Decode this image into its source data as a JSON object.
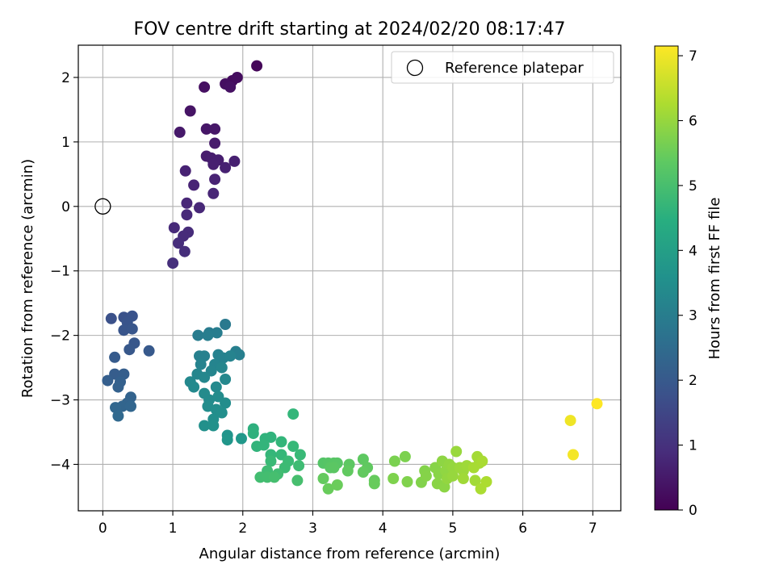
{
  "chart_data": {
    "type": "scatter",
    "title": "FOV centre drift starting at 2024/02/20 08:17:47",
    "xlabel": "Angular distance from reference (arcmin)",
    "ylabel": "Rotation from reference (arcmin)",
    "xlim": [
      -0.35,
      7.4
    ],
    "ylim": [
      -4.72,
      2.5
    ],
    "xticks": [
      "0",
      "1",
      "2",
      "3",
      "4",
      "5",
      "6",
      "7"
    ],
    "yticks": [
      "−4",
      "−3",
      "−2",
      "−1",
      "0",
      "1",
      "2"
    ],
    "grid": true,
    "legend": {
      "position": "top-right",
      "entries": [
        {
          "label": "Reference platepar",
          "marker": "open-circle"
        }
      ]
    },
    "reference_point": {
      "x": 0,
      "y": 0
    },
    "colorbar": {
      "label": "Hours from first FF file",
      "colormap": "viridis",
      "range": [
        0,
        7.15
      ],
      "ticks": [
        "0",
        "1",
        "2",
        "3",
        "4",
        "5",
        "6",
        "7"
      ]
    },
    "points": [
      {
        "x": 1.85,
        "y": 1.95,
        "t": 0.2
      },
      {
        "x": 2.2,
        "y": 2.18,
        "t": 0.12
      },
      {
        "x": 1.92,
        "y": 2.0,
        "t": 0.25
      },
      {
        "x": 1.75,
        "y": 1.9,
        "t": 0.28
      },
      {
        "x": 1.45,
        "y": 1.85,
        "t": 0.3
      },
      {
        "x": 1.82,
        "y": 1.85,
        "t": 0.33
      },
      {
        "x": 1.25,
        "y": 1.48,
        "t": 0.38
      },
      {
        "x": 1.48,
        "y": 1.2,
        "t": 0.42
      },
      {
        "x": 1.6,
        "y": 1.2,
        "t": 0.45
      },
      {
        "x": 1.1,
        "y": 1.15,
        "t": 0.48
      },
      {
        "x": 1.6,
        "y": 0.98,
        "t": 0.52
      },
      {
        "x": 1.48,
        "y": 0.78,
        "t": 0.55
      },
      {
        "x": 1.55,
        "y": 0.75,
        "t": 0.58
      },
      {
        "x": 1.65,
        "y": 0.72,
        "t": 0.6
      },
      {
        "x": 1.58,
        "y": 0.65,
        "t": 0.62
      },
      {
        "x": 1.88,
        "y": 0.7,
        "t": 0.64
      },
      {
        "x": 1.75,
        "y": 0.6,
        "t": 0.66
      },
      {
        "x": 1.18,
        "y": 0.55,
        "t": 0.68
      },
      {
        "x": 1.6,
        "y": 0.42,
        "t": 0.7
      },
      {
        "x": 1.3,
        "y": 0.33,
        "t": 0.72
      },
      {
        "x": 1.58,
        "y": 0.2,
        "t": 0.75
      },
      {
        "x": 1.2,
        "y": 0.05,
        "t": 0.78
      },
      {
        "x": 1.38,
        "y": -0.02,
        "t": 0.8
      },
      {
        "x": 1.2,
        "y": -0.13,
        "t": 0.82
      },
      {
        "x": 1.02,
        "y": -0.33,
        "t": 0.85
      },
      {
        "x": 1.22,
        "y": -0.4,
        "t": 0.88
      },
      {
        "x": 1.15,
        "y": -0.46,
        "t": 0.9
      },
      {
        "x": 1.08,
        "y": -0.57,
        "t": 0.92
      },
      {
        "x": 1.17,
        "y": -0.7,
        "t": 0.95
      },
      {
        "x": 1.0,
        "y": -0.88,
        "t": 0.98
      },
      {
        "x": 0.12,
        "y": -1.74,
        "t": 1.8
      },
      {
        "x": 0.3,
        "y": -1.72,
        "t": 1.82
      },
      {
        "x": 0.42,
        "y": -1.7,
        "t": 1.85
      },
      {
        "x": 0.35,
        "y": -1.8,
        "t": 1.87
      },
      {
        "x": 0.3,
        "y": -1.92,
        "t": 1.9
      },
      {
        "x": 0.42,
        "y": -1.9,
        "t": 1.92
      },
      {
        "x": 0.45,
        "y": -2.12,
        "t": 1.95
      },
      {
        "x": 0.38,
        "y": -2.22,
        "t": 1.97
      },
      {
        "x": 0.66,
        "y": -2.24,
        "t": 2.0
      },
      {
        "x": 0.17,
        "y": -2.34,
        "t": 2.05
      },
      {
        "x": 0.17,
        "y": -2.6,
        "t": 2.1
      },
      {
        "x": 0.3,
        "y": -2.6,
        "t": 2.12
      },
      {
        "x": 0.07,
        "y": -2.7,
        "t": 2.15
      },
      {
        "x": 0.25,
        "y": -2.72,
        "t": 2.18
      },
      {
        "x": 0.22,
        "y": -2.8,
        "t": 2.2
      },
      {
        "x": 0.4,
        "y": -2.96,
        "t": 2.25
      },
      {
        "x": 0.35,
        "y": -3.05,
        "t": 2.28
      },
      {
        "x": 0.28,
        "y": -3.1,
        "t": 2.3
      },
      {
        "x": 0.4,
        "y": -3.1,
        "t": 2.32
      },
      {
        "x": 0.18,
        "y": -3.12,
        "t": 2.35
      },
      {
        "x": 0.22,
        "y": -3.25,
        "t": 2.4
      },
      {
        "x": 1.75,
        "y": -1.83,
        "t": 2.9
      },
      {
        "x": 1.52,
        "y": -1.96,
        "t": 2.95
      },
      {
        "x": 1.36,
        "y": -2.0,
        "t": 3.0
      },
      {
        "x": 1.63,
        "y": -1.96,
        "t": 3.02
      },
      {
        "x": 1.5,
        "y": -2.0,
        "t": 3.05
      },
      {
        "x": 1.9,
        "y": -2.25,
        "t": 3.08
      },
      {
        "x": 1.95,
        "y": -2.3,
        "t": 3.1
      },
      {
        "x": 1.38,
        "y": -2.32,
        "t": 3.12
      },
      {
        "x": 1.45,
        "y": -2.32,
        "t": 3.14
      },
      {
        "x": 1.65,
        "y": -2.3,
        "t": 3.16
      },
      {
        "x": 1.72,
        "y": -2.35,
        "t": 3.18
      },
      {
        "x": 1.82,
        "y": -2.32,
        "t": 3.2
      },
      {
        "x": 1.4,
        "y": -2.45,
        "t": 3.22
      },
      {
        "x": 1.6,
        "y": -2.45,
        "t": 3.24
      },
      {
        "x": 1.55,
        "y": -2.55,
        "t": 3.26
      },
      {
        "x": 1.7,
        "y": -2.5,
        "t": 3.28
      },
      {
        "x": 1.35,
        "y": -2.6,
        "t": 3.3
      },
      {
        "x": 1.45,
        "y": -2.65,
        "t": 3.32
      },
      {
        "x": 1.75,
        "y": -2.68,
        "t": 3.34
      },
      {
        "x": 1.25,
        "y": -2.72,
        "t": 3.36
      },
      {
        "x": 1.3,
        "y": -2.8,
        "t": 3.38
      },
      {
        "x": 1.62,
        "y": -2.8,
        "t": 3.4
      },
      {
        "x": 1.45,
        "y": -2.9,
        "t": 3.42
      },
      {
        "x": 1.52,
        "y": -3.0,
        "t": 3.44
      },
      {
        "x": 1.65,
        "y": -2.95,
        "t": 3.46
      },
      {
        "x": 1.75,
        "y": -3.05,
        "t": 3.48
      },
      {
        "x": 1.5,
        "y": -3.1,
        "t": 3.5
      },
      {
        "x": 1.62,
        "y": -3.15,
        "t": 3.52
      },
      {
        "x": 1.58,
        "y": -3.3,
        "t": 3.54
      },
      {
        "x": 1.7,
        "y": -3.2,
        "t": 3.56
      },
      {
        "x": 1.45,
        "y": -3.4,
        "t": 3.58
      },
      {
        "x": 1.58,
        "y": -3.4,
        "t": 3.6
      },
      {
        "x": 1.78,
        "y": -3.55,
        "t": 3.7
      },
      {
        "x": 1.78,
        "y": -3.62,
        "t": 3.75
      },
      {
        "x": 1.98,
        "y": -3.6,
        "t": 3.8
      },
      {
        "x": 2.15,
        "y": -3.45,
        "t": 4.5
      },
      {
        "x": 2.15,
        "y": -3.52,
        "t": 4.55
      },
      {
        "x": 2.32,
        "y": -3.6,
        "t": 4.6
      },
      {
        "x": 2.4,
        "y": -3.58,
        "t": 4.62
      },
      {
        "x": 2.2,
        "y": -3.72,
        "t": 4.65
      },
      {
        "x": 2.3,
        "y": -3.7,
        "t": 4.68
      },
      {
        "x": 2.55,
        "y": -3.65,
        "t": 4.7
      },
      {
        "x": 2.72,
        "y": -3.22,
        "t": 4.72
      },
      {
        "x": 2.4,
        "y": -3.85,
        "t": 4.75
      },
      {
        "x": 2.55,
        "y": -3.85,
        "t": 4.78
      },
      {
        "x": 2.72,
        "y": -3.72,
        "t": 4.8
      },
      {
        "x": 2.82,
        "y": -3.85,
        "t": 4.82
      },
      {
        "x": 2.4,
        "y": -3.95,
        "t": 4.84
      },
      {
        "x": 2.65,
        "y": -3.95,
        "t": 4.86
      },
      {
        "x": 2.6,
        "y": -4.05,
        "t": 4.88
      },
      {
        "x": 2.8,
        "y": -4.02,
        "t": 4.9
      },
      {
        "x": 2.35,
        "y": -4.1,
        "t": 4.92
      },
      {
        "x": 2.5,
        "y": -4.15,
        "t": 4.94
      },
      {
        "x": 2.25,
        "y": -4.2,
        "t": 4.96
      },
      {
        "x": 2.35,
        "y": -4.2,
        "t": 4.98
      },
      {
        "x": 2.45,
        "y": -4.2,
        "t": 5.0
      },
      {
        "x": 2.78,
        "y": -4.25,
        "t": 5.02
      },
      {
        "x": 3.15,
        "y": -3.98,
        "t": 5.2
      },
      {
        "x": 3.22,
        "y": -3.98,
        "t": 5.22
      },
      {
        "x": 3.3,
        "y": -3.98,
        "t": 5.24
      },
      {
        "x": 3.35,
        "y": -3.98,
        "t": 5.26
      },
      {
        "x": 3.25,
        "y": -4.05,
        "t": 5.28
      },
      {
        "x": 3.3,
        "y": -4.05,
        "t": 5.3
      },
      {
        "x": 3.52,
        "y": -4.0,
        "t": 5.32
      },
      {
        "x": 3.72,
        "y": -3.92,
        "t": 5.34
      },
      {
        "x": 3.78,
        "y": -4.05,
        "t": 5.36
      },
      {
        "x": 3.5,
        "y": -4.1,
        "t": 5.38
      },
      {
        "x": 3.72,
        "y": -4.12,
        "t": 5.4
      },
      {
        "x": 3.15,
        "y": -4.22,
        "t": 5.42
      },
      {
        "x": 3.88,
        "y": -4.25,
        "t": 5.44
      },
      {
        "x": 3.88,
        "y": -4.3,
        "t": 5.46
      },
      {
        "x": 3.22,
        "y": -4.38,
        "t": 5.48
      },
      {
        "x": 3.35,
        "y": -4.32,
        "t": 5.5
      },
      {
        "x": 4.17,
        "y": -3.95,
        "t": 5.7
      },
      {
        "x": 4.32,
        "y": -3.88,
        "t": 5.72
      },
      {
        "x": 4.15,
        "y": -4.22,
        "t": 5.74
      },
      {
        "x": 4.35,
        "y": -4.27,
        "t": 5.76
      },
      {
        "x": 4.55,
        "y": -4.28,
        "t": 5.78
      },
      {
        "x": 4.6,
        "y": -4.1,
        "t": 5.8
      },
      {
        "x": 4.62,
        "y": -4.18,
        "t": 5.82
      },
      {
        "x": 4.75,
        "y": -4.05,
        "t": 5.84
      },
      {
        "x": 4.8,
        "y": -4.15,
        "t": 5.86
      },
      {
        "x": 4.78,
        "y": -4.3,
        "t": 5.88
      },
      {
        "x": 4.88,
        "y": -4.35,
        "t": 5.9
      },
      {
        "x": 4.85,
        "y": -3.95,
        "t": 5.92
      },
      {
        "x": 4.9,
        "y": -4.1,
        "t": 5.94
      },
      {
        "x": 4.95,
        "y": -4.0,
        "t": 5.96
      },
      {
        "x": 4.92,
        "y": -4.22,
        "t": 5.98
      },
      {
        "x": 5.0,
        "y": -4.05,
        "t": 6.0
      },
      {
        "x": 5.0,
        "y": -4.18,
        "t": 6.02
      },
      {
        "x": 5.05,
        "y": -3.8,
        "t": 6.04
      },
      {
        "x": 5.1,
        "y": -4.05,
        "t": 6.06
      },
      {
        "x": 5.15,
        "y": -4.1,
        "t": 6.08
      },
      {
        "x": 5.2,
        "y": -4.02,
        "t": 6.1
      },
      {
        "x": 5.15,
        "y": -4.22,
        "t": 6.12
      },
      {
        "x": 5.32,
        "y": -4.25,
        "t": 6.14
      },
      {
        "x": 5.35,
        "y": -3.88,
        "t": 6.16
      },
      {
        "x": 5.38,
        "y": -3.98,
        "t": 6.18
      },
      {
        "x": 5.3,
        "y": -4.05,
        "t": 6.2
      },
      {
        "x": 5.42,
        "y": -3.95,
        "t": 6.22
      },
      {
        "x": 5.4,
        "y": -4.38,
        "t": 6.24
      },
      {
        "x": 5.48,
        "y": -4.27,
        "t": 6.26
      },
      {
        "x": 6.68,
        "y": -3.32,
        "t": 7.0
      },
      {
        "x": 6.72,
        "y": -3.85,
        "t": 7.05
      },
      {
        "x": 7.06,
        "y": -3.06,
        "t": 7.15
      }
    ]
  }
}
